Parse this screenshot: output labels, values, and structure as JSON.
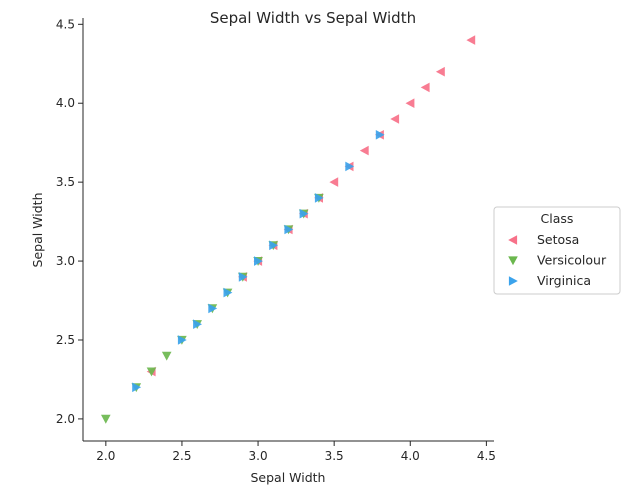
{
  "chart_data": {
    "type": "scatter",
    "title": "Sepal Width vs Sepal Width",
    "xlabel": "Sepal Width",
    "ylabel": "Sepal Width",
    "xlim": [
      1.85,
      4.55
    ],
    "ylim": [
      1.86,
      4.54
    ],
    "xticks": [
      "2.0",
      "2.5",
      "3.0",
      "3.5",
      "4.0",
      "4.5"
    ],
    "yticks": [
      "2.0",
      "2.5",
      "3.0",
      "3.5",
      "4.0",
      "4.5"
    ],
    "grid": false,
    "legend": {
      "title": "Class",
      "placement": "center-right outside"
    },
    "series": [
      {
        "name": "Setosa",
        "marker": "triangle-left",
        "color": "#f77189",
        "x": [
          2.3,
          2.9,
          3.0,
          3.1,
          3.2,
          3.3,
          3.4,
          3.5,
          3.6,
          3.7,
          3.8,
          3.9,
          4.0,
          4.1,
          4.2,
          4.4
        ],
        "y": [
          2.3,
          2.9,
          3.0,
          3.1,
          3.2,
          3.3,
          3.4,
          3.5,
          3.6,
          3.7,
          3.8,
          3.9,
          4.0,
          4.1,
          4.2,
          4.4
        ]
      },
      {
        "name": "Versicolour",
        "marker": "triangle-down",
        "color": "#6bb74e",
        "x": [
          2.0,
          2.2,
          2.3,
          2.4,
          2.5,
          2.6,
          2.7,
          2.8,
          2.9,
          3.0,
          3.1,
          3.2,
          3.3,
          3.4
        ],
        "y": [
          2.0,
          2.2,
          2.3,
          2.4,
          2.5,
          2.6,
          2.7,
          2.8,
          2.9,
          3.0,
          3.1,
          3.2,
          3.3,
          3.4
        ]
      },
      {
        "name": "Virginica",
        "marker": "triangle-right",
        "color": "#3ba3ec",
        "x": [
          2.2,
          2.5,
          2.6,
          2.7,
          2.8,
          2.9,
          3.0,
          3.1,
          3.2,
          3.3,
          3.4,
          3.6,
          3.8
        ],
        "y": [
          2.2,
          2.5,
          2.6,
          2.7,
          2.8,
          2.9,
          3.0,
          3.1,
          3.2,
          3.3,
          3.4,
          3.6,
          3.8
        ]
      }
    ]
  }
}
